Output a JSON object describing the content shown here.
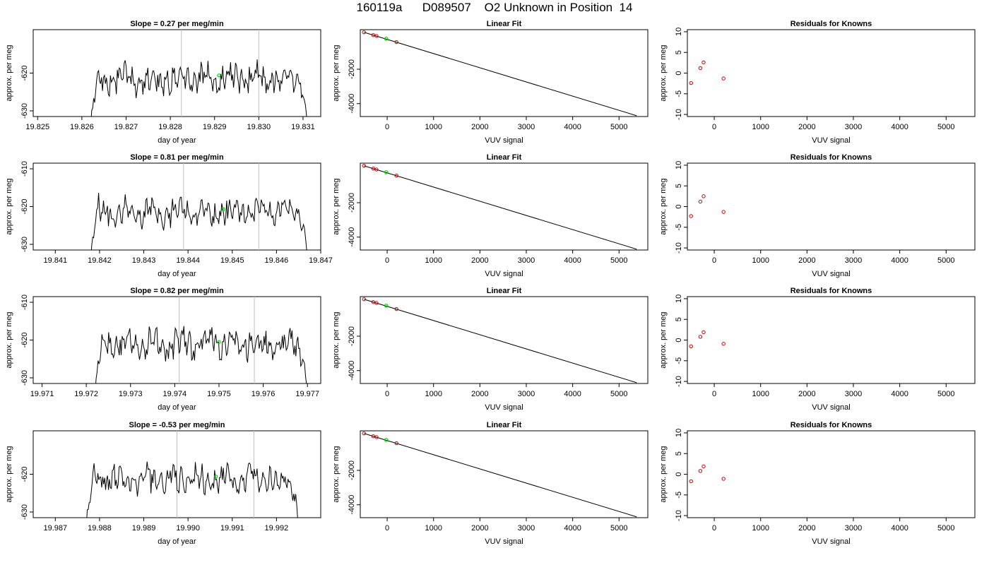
{
  "figure_title": "160119a      D089507    O2 Unknown in Position  14",
  "colors": {
    "line": "#000000",
    "known_points": "#cc0000",
    "unknown_point": "#00cc00",
    "marker_lines": "#bfbfbf"
  },
  "chart_data": [
    {
      "row": 0,
      "col": 0,
      "type": "line",
      "title": "Slope =  0.27  per meg/min",
      "xlabel": "day of year",
      "ylabel": "approx. per meg",
      "xlim": [
        19.8249,
        19.8314
      ],
      "ylim": [
        -631.5,
        -608.5
      ],
      "xticks": [
        "19.825",
        "19.826",
        "19.827",
        "19.828",
        "19.829",
        "19.830",
        "19.831"
      ],
      "yticks": [
        "-620",
        "-630"
      ],
      "series_start": 19.8262,
      "series_end": 19.8311,
      "baseline": -621.6,
      "markers": [
        19.82825,
        19.83
      ],
      "unknown_point": [
        19.8291,
        -620.6
      ]
    },
    {
      "row": 0,
      "col": 1,
      "type": "scatter",
      "title": "Linear Fit",
      "xlabel": "VUV signal",
      "ylabel": "approx. per meg",
      "xlim": [
        -580,
        5620
      ],
      "ylim": [
        -4750,
        300
      ],
      "xticks": [
        "0",
        "1000",
        "2000",
        "3000",
        "4000",
        "5000"
      ],
      "yticks": [
        "-2000",
        "-4000"
      ],
      "fit_line": {
        "x": [
          -500,
          5380
        ],
        "y": [
          147,
          -4703
        ]
      },
      "knowns": [
        {
          "x": -500,
          "y": 150
        },
        {
          "x": -300,
          "y": -15
        },
        {
          "x": -230,
          "y": -70
        },
        {
          "x": 200,
          "y": -420
        }
      ],
      "unknown": {
        "x": -20,
        "y": -230
      }
    },
    {
      "row": 0,
      "col": 2,
      "type": "scatter",
      "title": "Residuals for Knowns",
      "xlabel": "VUV signal",
      "ylabel": "approx. per meg",
      "xlim": [
        -580,
        5620
      ],
      "ylim": [
        -10.5,
        10.5
      ],
      "xticks": [
        "0",
        "1000",
        "2000",
        "3000",
        "4000",
        "5000"
      ],
      "yticks": [
        "10",
        "5",
        "0",
        "-5",
        "-10"
      ],
      "knowns": [
        {
          "x": -500,
          "y": -2.4
        },
        {
          "x": -300,
          "y": 1.2
        },
        {
          "x": -230,
          "y": 2.6
        },
        {
          "x": 200,
          "y": -1.3
        }
      ]
    },
    {
      "row": 1,
      "col": 0,
      "type": "line",
      "title": "Slope =  0.81  per meg/min",
      "xlabel": "day of year",
      "ylabel": "approx. per meg",
      "xlim": [
        19.8405,
        19.847
      ],
      "ylim": [
        -631.5,
        -608.5
      ],
      "xticks": [
        "19.841",
        "19.842",
        "19.843",
        "19.844",
        "19.845",
        "19.846",
        "19.847"
      ],
      "yticks": [
        "-610",
        "-620",
        "-630"
      ],
      "series_start": 19.8418,
      "series_end": 19.8467,
      "baseline": -621.5,
      "markers": [
        19.8439,
        19.8456
      ],
      "unknown_point": [
        19.8448,
        -620.7
      ]
    },
    {
      "row": 1,
      "col": 1,
      "type": "scatter",
      "title": "Linear Fit",
      "xlabel": "VUV signal",
      "ylabel": "approx. per meg",
      "xlim": [
        -580,
        5620
      ],
      "ylim": [
        -4750,
        300
      ],
      "xticks": [
        "0",
        "1000",
        "2000",
        "3000",
        "4000",
        "5000"
      ],
      "yticks": [
        "-2000",
        "-4000"
      ],
      "fit_line": {
        "x": [
          -500,
          5380
        ],
        "y": [
          147,
          -4703
        ]
      },
      "knowns": [
        {
          "x": -500,
          "y": 150
        },
        {
          "x": -300,
          "y": -15
        },
        {
          "x": -230,
          "y": -70
        },
        {
          "x": 200,
          "y": -420
        }
      ],
      "unknown": {
        "x": -20,
        "y": -230
      }
    },
    {
      "row": 1,
      "col": 2,
      "type": "scatter",
      "title": "Residuals for Knowns",
      "xlabel": "VUV signal",
      "ylabel": "approx. per meg",
      "xlim": [
        -580,
        5620
      ],
      "ylim": [
        -10.5,
        10.5
      ],
      "xticks": [
        "0",
        "1000",
        "2000",
        "3000",
        "4000",
        "5000"
      ],
      "yticks": [
        "10",
        "5",
        "0",
        "-5",
        "-10"
      ],
      "knowns": [
        {
          "x": -500,
          "y": -2.3
        },
        {
          "x": -300,
          "y": 1.2
        },
        {
          "x": -230,
          "y": 2.5
        },
        {
          "x": 200,
          "y": -1.3
        }
      ]
    },
    {
      "row": 2,
      "col": 0,
      "type": "line",
      "title": "Slope =  0.82  per meg/min",
      "xlabel": "day of year",
      "ylabel": "approx. per meg",
      "xlim": [
        19.9708,
        19.9773
      ],
      "ylim": [
        -631.5,
        -608.5
      ],
      "xticks": [
        "19.971",
        "19.972",
        "19.973",
        "19.974",
        "19.975",
        "19.976",
        "19.977"
      ],
      "yticks": [
        "-610",
        "-620",
        "-630"
      ],
      "series_start": 19.9722,
      "series_end": 19.977,
      "baseline": -620.9,
      "markers": [
        19.9741,
        19.9758
      ],
      "unknown_point": [
        19.975,
        -620.5
      ]
    },
    {
      "row": 2,
      "col": 1,
      "type": "scatter",
      "title": "Linear Fit",
      "xlabel": "VUV signal",
      "ylabel": "approx. per meg",
      "xlim": [
        -580,
        5620
      ],
      "ylim": [
        -4750,
        300
      ],
      "xticks": [
        "0",
        "1000",
        "2000",
        "3000",
        "4000",
        "5000"
      ],
      "yticks": [
        "-2000",
        "-4000"
      ],
      "fit_line": {
        "x": [
          -500,
          5380
        ],
        "y": [
          147,
          -4703
        ]
      },
      "knowns": [
        {
          "x": -500,
          "y": 150
        },
        {
          "x": -300,
          "y": -15
        },
        {
          "x": -230,
          "y": -70
        },
        {
          "x": 200,
          "y": -420
        }
      ],
      "unknown": {
        "x": -20,
        "y": -230
      }
    },
    {
      "row": 2,
      "col": 2,
      "type": "scatter",
      "title": "Residuals for Knowns",
      "xlabel": "VUV signal",
      "ylabel": "approx. per meg",
      "xlim": [
        -580,
        5620
      ],
      "ylim": [
        -10.5,
        10.5
      ],
      "xticks": [
        "0",
        "1000",
        "2000",
        "3000",
        "4000",
        "5000"
      ],
      "yticks": [
        "10",
        "5",
        "0",
        "-5",
        "-10"
      ],
      "knowns": [
        {
          "x": -500,
          "y": -1.5
        },
        {
          "x": -300,
          "y": 0.8
        },
        {
          "x": -230,
          "y": 1.9
        },
        {
          "x": 200,
          "y": -0.9
        }
      ]
    },
    {
      "row": 3,
      "col": 0,
      "type": "line",
      "title": "Slope =  -0.53  per meg/min",
      "xlabel": "day of year",
      "ylabel": "approx. per meg",
      "xlim": [
        19.9865,
        19.993
      ],
      "ylim": [
        -631.5,
        -608.5
      ],
      "xticks": [
        "19.987",
        "19.988",
        "19.989",
        "19.990",
        "19.991",
        "19.992"
      ],
      "yticks": [
        "-620",
        "-630"
      ],
      "series_start": 19.9877,
      "series_end": 19.9925,
      "baseline": -621.4,
      "markers": [
        19.98975,
        19.99149
      ],
      "unknown_point": [
        19.99063,
        -620.6
      ]
    },
    {
      "row": 3,
      "col": 1,
      "type": "scatter",
      "title": "Linear Fit",
      "xlabel": "VUV signal",
      "ylabel": "approx. per meg",
      "xlim": [
        -580,
        5620
      ],
      "ylim": [
        -4750,
        300
      ],
      "xticks": [
        "0",
        "1000",
        "2000",
        "3000",
        "4000",
        "5000"
      ],
      "yticks": [
        "-2000",
        "-4000"
      ],
      "fit_line": {
        "x": [
          -500,
          5380
        ],
        "y": [
          147,
          -4703
        ]
      },
      "knowns": [
        {
          "x": -500,
          "y": 150
        },
        {
          "x": -300,
          "y": -15
        },
        {
          "x": -230,
          "y": -70
        },
        {
          "x": 200,
          "y": -420
        }
      ],
      "unknown": {
        "x": -20,
        "y": -230
      }
    },
    {
      "row": 3,
      "col": 2,
      "type": "scatter",
      "title": "Residuals for Knowns",
      "xlabel": "VUV signal",
      "ylabel": "approx. per meg",
      "xlim": [
        -580,
        5620
      ],
      "ylim": [
        -10.5,
        10.5
      ],
      "xticks": [
        "0",
        "1000",
        "2000",
        "3000",
        "4000",
        "5000"
      ],
      "yticks": [
        "10",
        "5",
        "0",
        "-5",
        "-10"
      ],
      "knowns": [
        {
          "x": -500,
          "y": -1.7
        },
        {
          "x": -300,
          "y": 0.8
        },
        {
          "x": -230,
          "y": 1.9
        },
        {
          "x": 200,
          "y": -1.1
        }
      ]
    }
  ]
}
